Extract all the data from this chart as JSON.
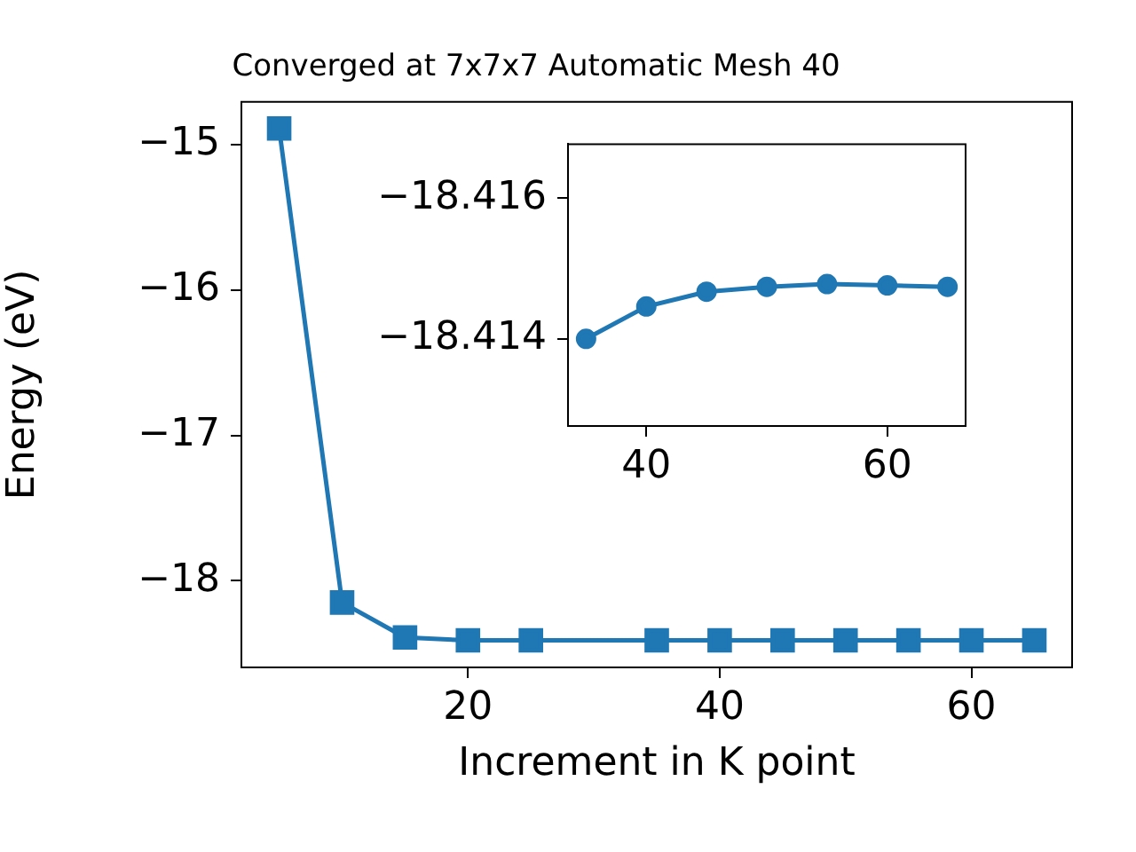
{
  "chart_data": [
    {
      "type": "line",
      "title": "Converged at 7x7x7 Automatic Mesh 40",
      "xlabel": "Increment in K point",
      "ylabel": "Energy (eV)",
      "x": [
        5,
        10,
        15,
        20,
        25,
        35,
        40,
        45,
        50,
        55,
        60,
        65
      ],
      "series": [
        {
          "color": "#1f77b4",
          "values": [
            -14.89,
            -18.15,
            -18.39,
            -18.41,
            -18.41,
            -18.41,
            -18.41,
            -18.41,
            -18.41,
            -18.41,
            -18.41,
            -18.41
          ]
        }
      ],
      "xlim": [
        2,
        68
      ],
      "ylim": [
        -18.596,
        -14.707
      ],
      "xticks": [
        20,
        40,
        60
      ],
      "yticks": [
        {
          "value": -18,
          "label": "−18"
        },
        {
          "value": -17,
          "label": "−17"
        },
        {
          "value": -16,
          "label": "−16"
        },
        {
          "value": -15,
          "label": "−15"
        }
      ],
      "marker": "square"
    },
    {
      "type": "line",
      "x": [
        35,
        40,
        45,
        50,
        55,
        60,
        65
      ],
      "series": [
        {
          "color": "#1f77b4",
          "values": [
            -18.414,
            -18.41446,
            -18.41467,
            -18.41474,
            -18.41478,
            -18.41476,
            -18.41474
          ]
        }
      ],
      "xlim": [
        33.5,
        66.5
      ],
      "ylim": [
        -18.41276,
        -18.41677
      ],
      "xticks": [
        40,
        60
      ],
      "yticks": [
        {
          "value": -18.414,
          "label": "−18.414"
        },
        {
          "value": -18.416,
          "label": "−18.416"
        }
      ],
      "marker": "circle"
    }
  ]
}
